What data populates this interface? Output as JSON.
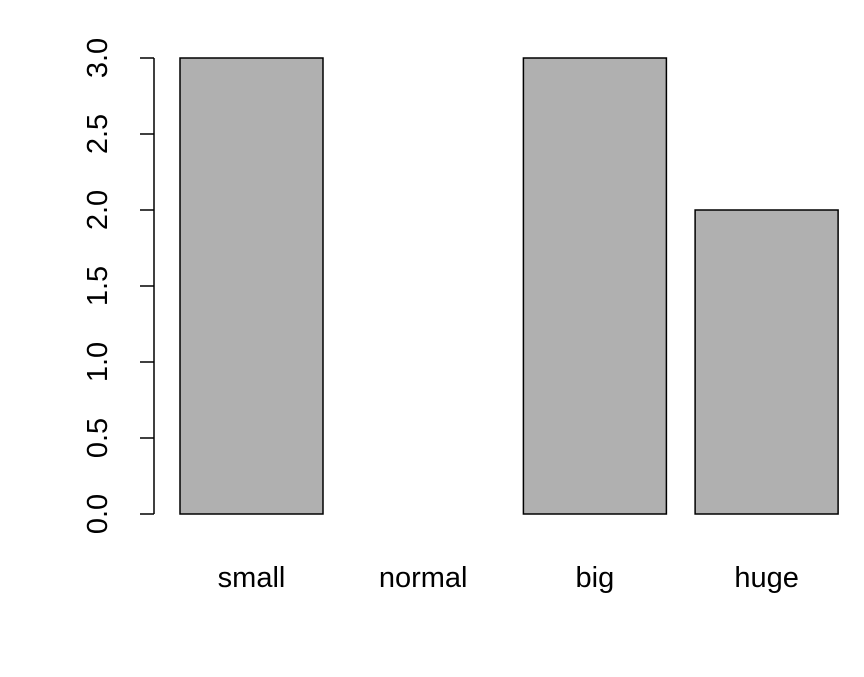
{
  "chart_data": {
    "type": "bar",
    "title": "",
    "xlabel": "",
    "ylabel": "",
    "categories": [
      "small",
      "normal",
      "big",
      "huge"
    ],
    "values": [
      3,
      0,
      3,
      2
    ],
    "ylim": [
      0,
      3
    ],
    "yticks": [
      "0.0",
      "0.5",
      "1.0",
      "1.5",
      "2.0",
      "2.5",
      "3.0"
    ],
    "grid": false,
    "legend": "none",
    "bar_color": "#b0b0b0",
    "bar_border_color": "#000000"
  }
}
